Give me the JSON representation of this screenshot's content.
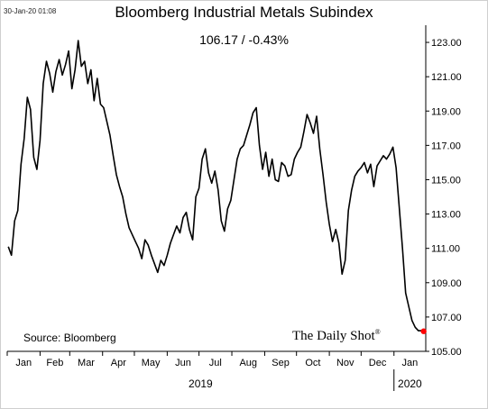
{
  "header": {
    "timestamp": "30-Jan-20 01:08",
    "title": "Bloomberg Industrial Metals Subindex",
    "last_value": "106.17  /  -0.43%"
  },
  "footer": {
    "source": "Source: Bloomberg",
    "brand": "The Daily Shot",
    "brand_mark": "®"
  },
  "chart_data": {
    "type": "line",
    "title": "Bloomberg Industrial Metals Subindex",
    "xlabel": "",
    "ylabel": "",
    "ylim": [
      105,
      124
    ],
    "y_ticks": [
      "105.00",
      "107.00",
      "109.00",
      "111.00",
      "113.00",
      "115.00",
      "117.00",
      "119.00",
      "121.00",
      "123.00"
    ],
    "x_ticks": [
      "Jan",
      "Feb",
      "Mar",
      "Apr",
      "May",
      "Jun",
      "Jul",
      "Aug",
      "Sep",
      "Oct",
      "Nov",
      "Dec",
      "Jan"
    ],
    "year_labels": [
      "2019",
      "2020"
    ],
    "grid": false,
    "series_color": "#000000",
    "last_point_color": "#ff0000",
    "series": [
      {
        "name": "",
        "x": [
          "2019-01-02",
          "2019-01-05",
          "2019-01-08",
          "2019-01-11",
          "2019-01-14",
          "2019-01-17",
          "2019-01-20",
          "2019-01-23",
          "2019-01-26",
          "2019-01-29",
          "2019-02-01",
          "2019-02-04",
          "2019-02-07",
          "2019-02-10",
          "2019-02-13",
          "2019-02-16",
          "2019-02-19",
          "2019-02-22",
          "2019-02-25",
          "2019-02-28",
          "2019-03-03",
          "2019-03-06",
          "2019-03-09",
          "2019-03-12",
          "2019-03-15",
          "2019-03-18",
          "2019-03-21",
          "2019-03-24",
          "2019-03-27",
          "2019-03-30",
          "2019-04-02",
          "2019-04-05",
          "2019-04-08",
          "2019-04-11",
          "2019-04-14",
          "2019-04-17",
          "2019-04-20",
          "2019-04-23",
          "2019-04-26",
          "2019-04-29",
          "2019-05-02",
          "2019-05-05",
          "2019-05-08",
          "2019-05-11",
          "2019-05-14",
          "2019-05-17",
          "2019-05-20",
          "2019-05-23",
          "2019-05-26",
          "2019-05-29",
          "2019-06-01",
          "2019-06-04",
          "2019-06-07",
          "2019-06-10",
          "2019-06-13",
          "2019-06-16",
          "2019-06-19",
          "2019-06-22",
          "2019-06-25",
          "2019-06-28",
          "2019-07-01",
          "2019-07-04",
          "2019-07-07",
          "2019-07-10",
          "2019-07-13",
          "2019-07-16",
          "2019-07-19",
          "2019-07-22",
          "2019-07-25",
          "2019-07-28",
          "2019-07-31",
          "2019-08-03",
          "2019-08-06",
          "2019-08-09",
          "2019-08-12",
          "2019-08-15",
          "2019-08-18",
          "2019-08-21",
          "2019-08-24",
          "2019-08-27",
          "2019-08-30",
          "2019-09-02",
          "2019-09-05",
          "2019-09-08",
          "2019-09-11",
          "2019-09-14",
          "2019-09-17",
          "2019-09-20",
          "2019-09-23",
          "2019-09-26",
          "2019-09-29",
          "2019-10-02",
          "2019-10-05",
          "2019-10-08",
          "2019-10-11",
          "2019-10-14",
          "2019-10-17",
          "2019-10-20",
          "2019-10-23",
          "2019-10-26",
          "2019-10-29",
          "2019-11-01",
          "2019-11-04",
          "2019-11-07",
          "2019-11-10",
          "2019-11-13",
          "2019-11-16",
          "2019-11-19",
          "2019-11-22",
          "2019-11-25",
          "2019-11-28",
          "2019-12-01",
          "2019-12-04",
          "2019-12-07",
          "2019-12-10",
          "2019-12-13",
          "2019-12-16",
          "2019-12-19",
          "2019-12-22",
          "2019-12-25",
          "2019-12-28",
          "2019-12-31",
          "2020-01-03",
          "2020-01-06",
          "2020-01-09",
          "2020-01-12",
          "2020-01-15",
          "2020-01-18",
          "2020-01-21",
          "2020-01-24",
          "2020-01-27",
          "2020-01-29"
        ],
        "values": [
          111.1,
          110.6,
          112.6,
          113.2,
          115.9,
          117.4,
          119.8,
          119.1,
          116.3,
          115.6,
          117.3,
          120.6,
          121.9,
          121.2,
          120.1,
          121.3,
          122.0,
          121.1,
          121.7,
          122.5,
          120.3,
          121.4,
          123.1,
          121.6,
          121.9,
          120.6,
          121.4,
          119.6,
          120.9,
          119.4,
          119.2,
          118.4,
          117.6,
          116.4,
          115.3,
          114.6,
          114.0,
          113.0,
          112.2,
          111.8,
          111.4,
          111.0,
          110.4,
          111.5,
          111.2,
          110.6,
          110.1,
          109.6,
          110.3,
          110.0,
          110.6,
          111.3,
          111.8,
          112.3,
          111.9,
          112.8,
          113.1,
          112.1,
          111.5,
          114.0,
          114.5,
          116.2,
          116.8,
          115.4,
          114.8,
          115.5,
          114.4,
          112.6,
          112.0,
          113.3,
          113.8,
          115.0,
          116.2,
          116.8,
          117.0,
          117.6,
          118.2,
          118.9,
          119.2,
          117.0,
          115.6,
          116.6,
          115.2,
          116.2,
          115.0,
          114.9,
          116.0,
          115.8,
          115.2,
          115.3,
          116.2,
          116.6,
          116.9,
          117.8,
          118.8,
          118.3,
          117.7,
          118.7,
          116.8,
          115.3,
          113.7,
          112.4,
          111.4,
          112.1,
          111.3,
          109.5,
          110.3,
          113.2,
          114.4,
          115.2,
          115.5,
          115.7,
          116.0,
          115.4,
          115.9,
          114.6,
          115.8,
          116.1,
          116.4,
          116.2,
          116.5,
          116.9,
          115.7,
          113.4,
          111.0,
          108.4,
          107.6,
          106.8,
          106.4,
          106.2,
          106.2,
          106.17
        ]
      }
    ]
  }
}
